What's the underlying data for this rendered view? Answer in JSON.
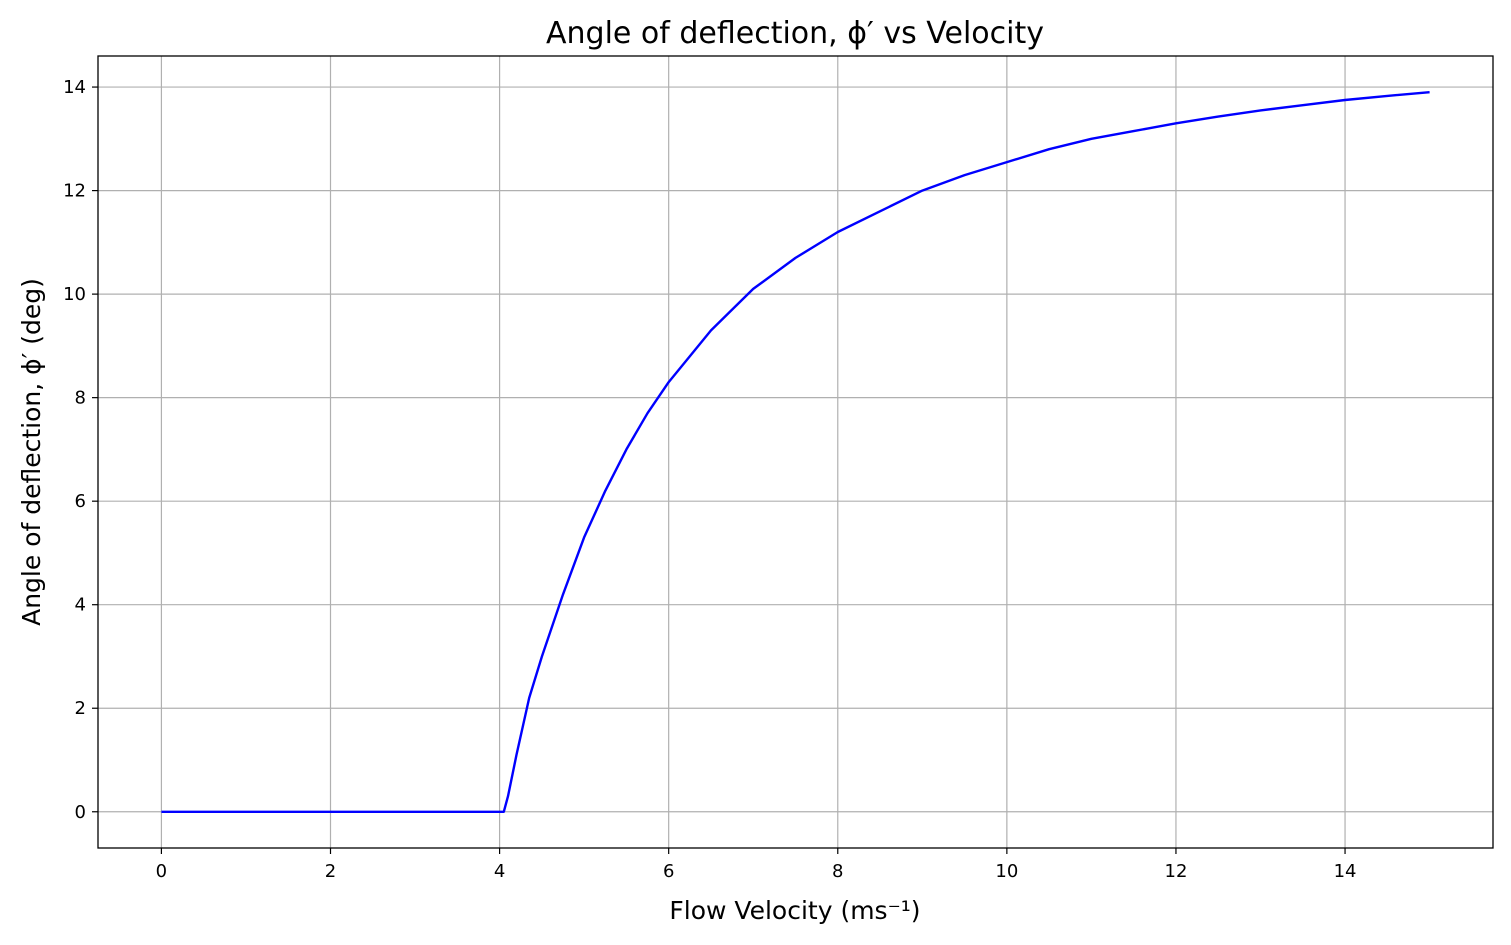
{
  "chart_data": {
    "type": "line",
    "title": "Angle of deflection, ϕ′ vs Velocity",
    "xlabel": "Flow Velocity (ms⁻¹)",
    "ylabel": "Angle of deflection, ϕ′ (deg)",
    "xlim": [
      -0.75,
      15.75
    ],
    "ylim": [
      -0.7,
      14.6
    ],
    "xticks": [
      0,
      2,
      4,
      6,
      8,
      10,
      12,
      14
    ],
    "yticks": [
      0,
      2,
      4,
      6,
      8,
      10,
      12,
      14
    ],
    "grid": true,
    "line_color": "#0000ff",
    "series": [
      {
        "x": [
          0,
          4.05,
          4.1,
          4.2,
          4.35,
          4.5,
          4.75,
          5.0,
          5.25,
          5.5,
          5.75,
          6.0,
          6.5,
          7.0,
          7.5,
          8.0,
          8.5,
          9.0,
          9.5,
          10.0,
          10.5,
          11.0,
          11.5,
          12.0,
          12.5,
          13.0,
          13.5,
          14.0,
          14.5,
          15.0
        ],
        "y": [
          0,
          0,
          0.3,
          1.1,
          2.2,
          3.0,
          4.2,
          5.3,
          6.2,
          7.0,
          7.7,
          8.3,
          9.3,
          10.1,
          10.7,
          11.2,
          11.6,
          12.0,
          12.3,
          12.55,
          12.8,
          13.0,
          13.15,
          13.3,
          13.43,
          13.55,
          13.65,
          13.75,
          13.83,
          13.9
        ]
      }
    ]
  }
}
